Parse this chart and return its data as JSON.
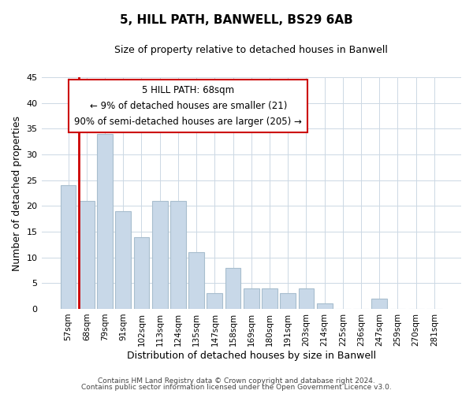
{
  "title": "5, HILL PATH, BANWELL, BS29 6AB",
  "subtitle": "Size of property relative to detached houses in Banwell",
  "xlabel": "Distribution of detached houses by size in Banwell",
  "ylabel": "Number of detached properties",
  "bar_labels": [
    "57sqm",
    "68sqm",
    "79sqm",
    "91sqm",
    "102sqm",
    "113sqm",
    "124sqm",
    "135sqm",
    "147sqm",
    "158sqm",
    "169sqm",
    "180sqm",
    "191sqm",
    "203sqm",
    "214sqm",
    "225sqm",
    "236sqm",
    "247sqm",
    "259sqm",
    "270sqm",
    "281sqm"
  ],
  "bar_values": [
    24,
    21,
    34,
    19,
    14,
    21,
    21,
    11,
    3,
    8,
    4,
    4,
    3,
    4,
    1,
    0,
    0,
    2,
    0,
    0,
    0
  ],
  "bar_color": "#c8d8e8",
  "bar_edge_color": "#a8bece",
  "highlight_bar_index": 1,
  "highlight_edge_color": "#cc0000",
  "ylim": [
    0,
    45
  ],
  "yticks": [
    0,
    5,
    10,
    15,
    20,
    25,
    30,
    35,
    40,
    45
  ],
  "annotation_title": "5 HILL PATH: 68sqm",
  "annotation_line1": "← 9% of detached houses are smaller (21)",
  "annotation_line2": "90% of semi-detached houses are larger (205) →",
  "annotation_box_color": "#ffffff",
  "annotation_box_edge": "#cc0000",
  "footer_line1": "Contains HM Land Registry data © Crown copyright and database right 2024.",
  "footer_line2": "Contains public sector information licensed under the Open Government Licence v3.0.",
  "background_color": "#ffffff",
  "grid_color": "#ccd8e4"
}
